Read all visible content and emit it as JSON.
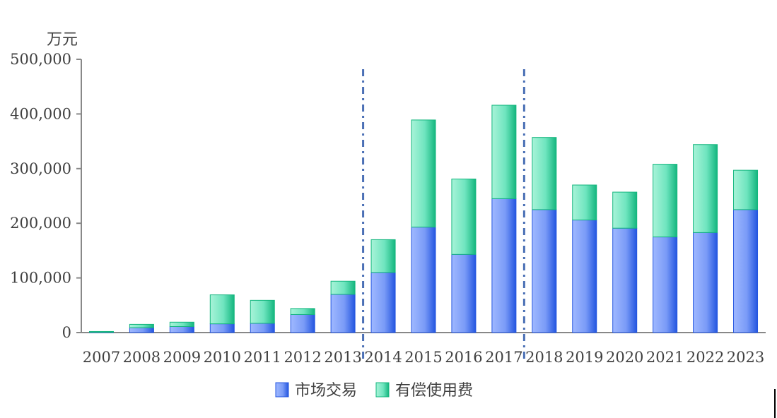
{
  "chart_data": {
    "type": "bar",
    "stacked": true,
    "title": "",
    "xlabel": "",
    "ylabel": "万元",
    "ylim": [
      0,
      500000
    ],
    "yticks": [
      0,
      100000,
      200000,
      300000,
      400000,
      500000
    ],
    "ytick_labels": [
      "0",
      "100,000",
      "200,000",
      "300,000",
      "400,000",
      "500,000"
    ],
    "categories": [
      "2007",
      "2008",
      "2009",
      "2010",
      "2011",
      "2012",
      "2013",
      "2014",
      "2015",
      "2016",
      "2017",
      "2018",
      "2019",
      "2020",
      "2021",
      "2022",
      "2023"
    ],
    "series": [
      {
        "name": "市场交易",
        "color": "#4a74f0",
        "values": [
          500,
          9000,
          11000,
          16000,
          17000,
          33000,
          70000,
          110000,
          193000,
          143000,
          245000,
          225000,
          206000,
          191000,
          175000,
          183000,
          225000
        ]
      },
      {
        "name": "有偿使用费",
        "color": "#2ed39a",
        "values": [
          1500,
          6000,
          8000,
          53000,
          42000,
          11000,
          24000,
          60000,
          196000,
          138000,
          171000,
          132000,
          64000,
          66000,
          133000,
          161000,
          72000
        ]
      }
    ],
    "dividers_after": [
      "2013",
      "2017"
    ],
    "grid": false,
    "legend_position": "bottom"
  }
}
